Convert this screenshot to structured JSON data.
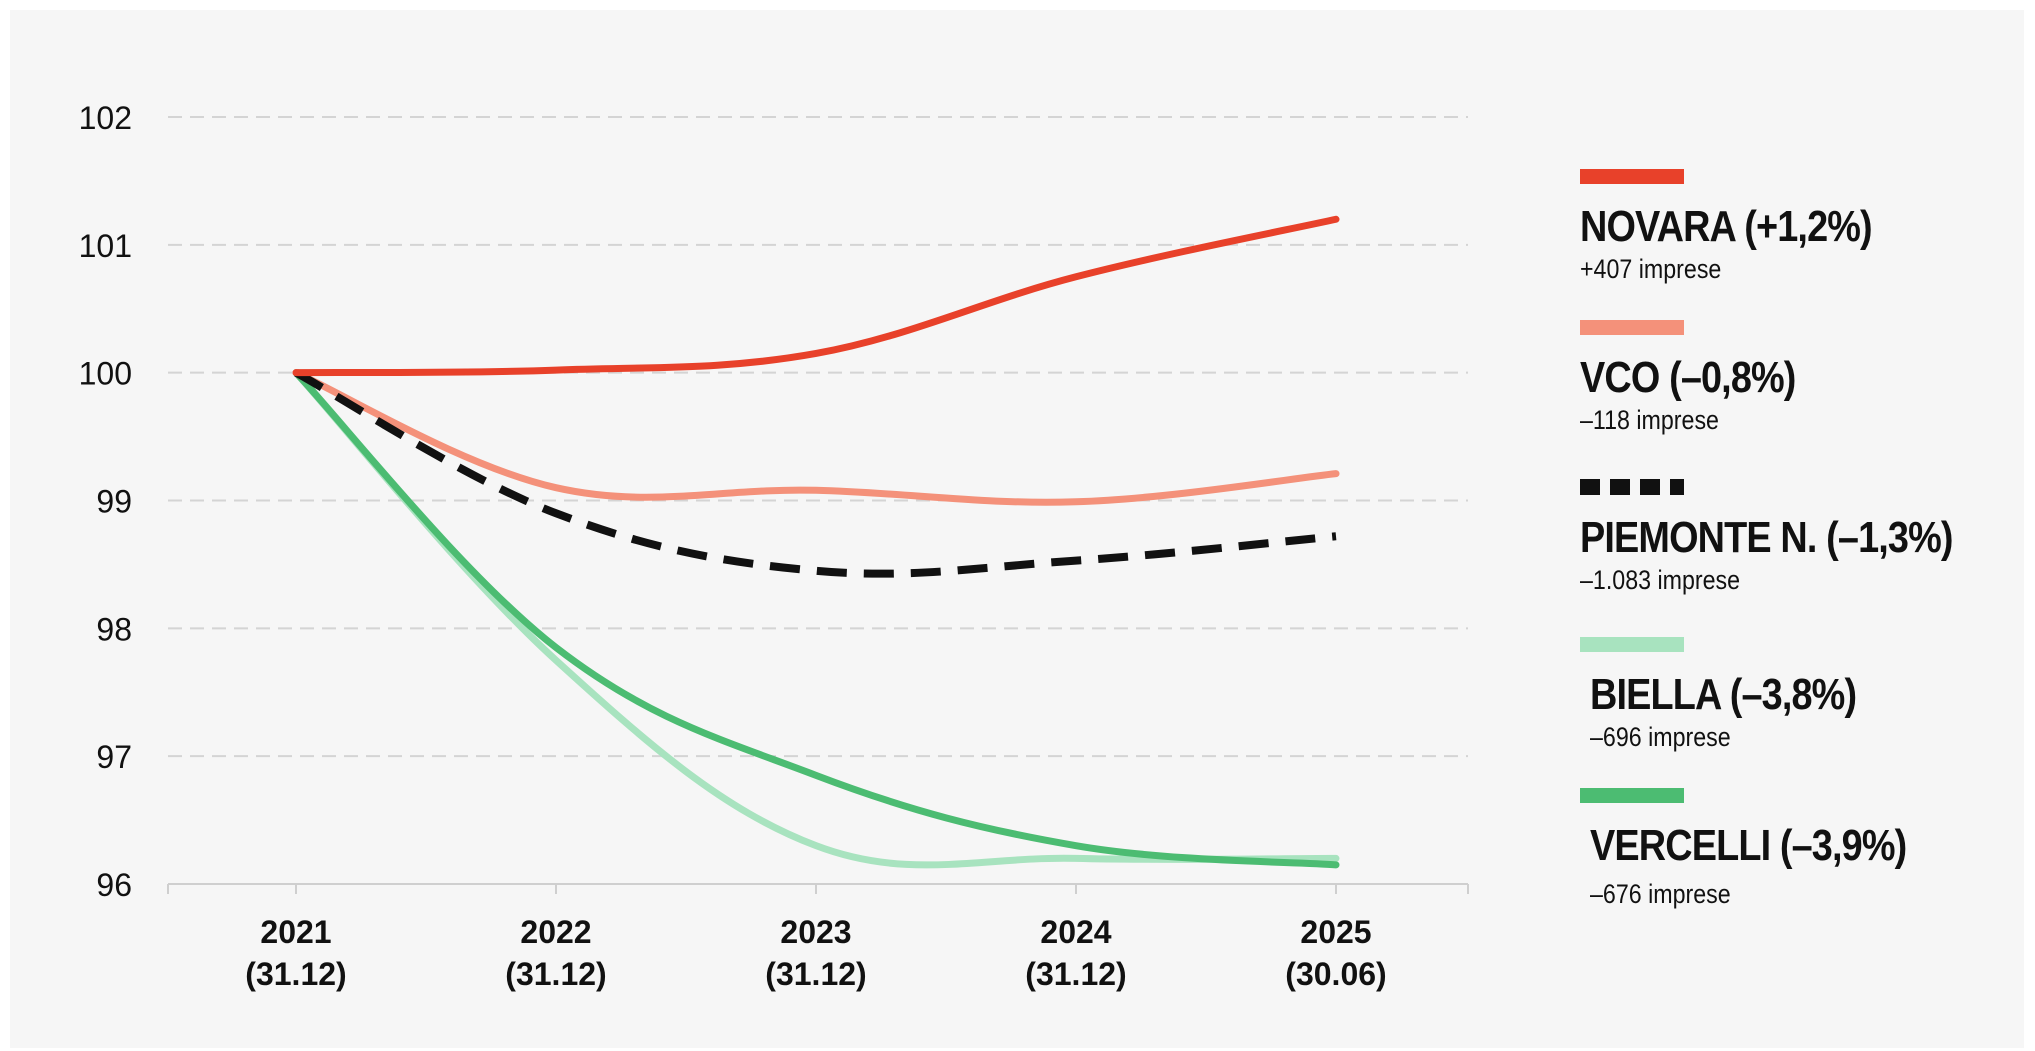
{
  "chart_data": {
    "type": "line",
    "title": "",
    "xlabel": "",
    "ylabel": "",
    "categories": [
      "2021\n(31.12)",
      "2022\n(31.12)",
      "2023\n(31.12)",
      "2024\n(31.12)",
      "2025\n(30.06)"
    ],
    "category_lines": [
      [
        "2021",
        "(31.12)"
      ],
      [
        "2022",
        "(31.12)"
      ],
      [
        "2023",
        "(31.12)"
      ],
      [
        "2024",
        "(31.12)"
      ],
      [
        "2025",
        "(30.06)"
      ]
    ],
    "y_ticks": [
      96,
      97,
      98,
      99,
      100,
      101,
      102
    ],
    "ylim": [
      96,
      102
    ],
    "grid": true,
    "legend_position": "right",
    "series": [
      {
        "name": "NOVARA (+1,2%)",
        "sub": "+407 imprese",
        "color": "#e8412a",
        "style": "solid",
        "values": [
          100,
          100.02,
          100.15,
          100.75,
          101.2
        ]
      },
      {
        "name": "VCO (–0,8%)",
        "sub": "–118 imprese",
        "color": "#f4917a",
        "style": "solid",
        "values": [
          100,
          99.1,
          99.08,
          98.99,
          99.21
        ]
      },
      {
        "name": "PIEMONTE N. (–1,3%)",
        "sub": "–1.083 imprese",
        "color": "#111111",
        "style": "dashed",
        "values": [
          100,
          98.9,
          98.45,
          98.53,
          98.72
        ]
      },
      {
        "name": "BIELLA (–3,8%)",
        "sub": "–696 imprese",
        "color": "#a8e3bf",
        "style": "solid",
        "values": [
          100,
          97.75,
          96.3,
          96.2,
          96.2
        ]
      },
      {
        "name": "VERCELLI (–3,9%)",
        "sub": "–676 imprese",
        "color": "#4cbc72",
        "style": "solid",
        "values": [
          100,
          97.85,
          96.85,
          96.3,
          96.15
        ]
      }
    ]
  }
}
